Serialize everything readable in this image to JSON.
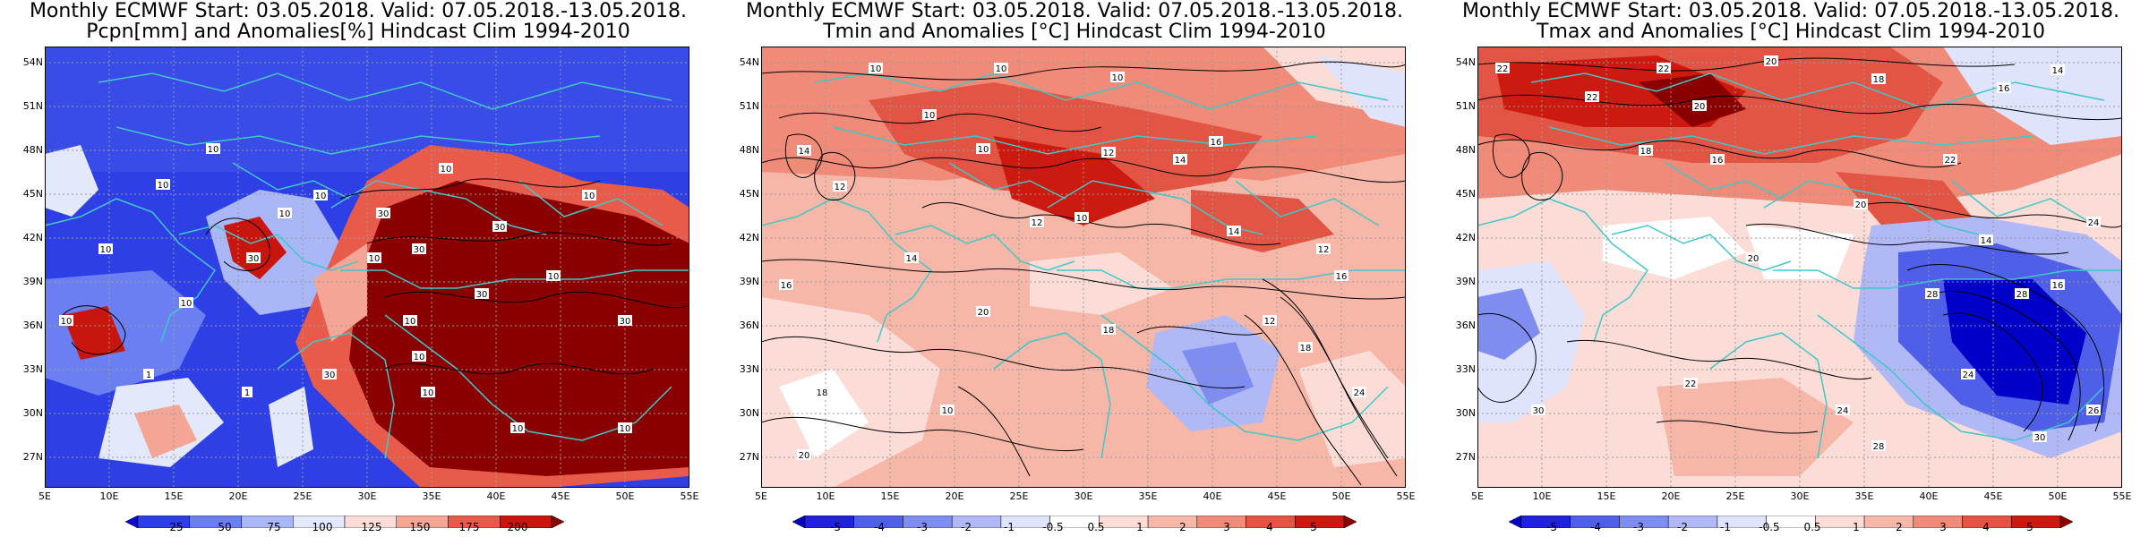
{
  "panels": [
    {
      "title1": "Monthly ECMWF Start: 03.05.2018. Valid: 07.05.2018.-13.05.2018.",
      "title2": "Pcpn[mm] and Anomalies[%] Hindcast Clim 1994-2010",
      "colorbar": {
        "colors": [
          "#0a0ad2",
          "#2e3fe6",
          "#6b7ff0",
          "#aab7f6",
          "#e3e8fb",
          "#fbdcd6",
          "#f4a595",
          "#e85a4a",
          "#c8160f",
          "#8a0000"
        ],
        "labels": [
          "25",
          "50",
          "75",
          "100",
          "125",
          "150",
          "175",
          "200"
        ]
      },
      "contour_labels": [
        "10",
        "10",
        "10",
        "10",
        "10",
        "10",
        "10",
        "10",
        "10",
        "10",
        "10",
        "10",
        "10",
        "10",
        "10",
        "10",
        "30",
        "30",
        "30",
        "30",
        "30",
        "30",
        "30",
        "1",
        "1"
      ]
    },
    {
      "title1": "Monthly ECMWF Start: 03.05.2018. Valid: 07.05.2018.-13.05.2018.",
      "title2": "Tmin and Anomalies [°C] Hindcast Clim 1994-2010",
      "colorbar": {
        "colors": [
          "#0000c8",
          "#2222dc",
          "#4f5fe8",
          "#7f8cf0",
          "#b0b8f6",
          "#dfe3fb",
          "#ffffff",
          "#fbdcd6",
          "#f6b7a8",
          "#ef8b78",
          "#e25544",
          "#cc1a10",
          "#8a0000"
        ],
        "labels": [
          "-5",
          "-4",
          "-3",
          "-2",
          "-1",
          "-0.5",
          "0.5",
          "1",
          "2",
          "3",
          "4",
          "5"
        ]
      },
      "contour_labels": [
        "10",
        "10",
        "10",
        "10",
        "10",
        "10",
        "12",
        "12",
        "12",
        "12",
        "14",
        "14",
        "14",
        "14",
        "16",
        "16",
        "16",
        "18",
        "18",
        "18",
        "20",
        "20",
        "24",
        "12",
        "10"
      ]
    },
    {
      "title1": "Monthly ECMWF Start: 03.05.2018. Valid: 07.05.2018.-13.05.2018.",
      "title2": "Tmax and Anomalies [°C] Hindcast Clim 1994-2010",
      "colorbar": {
        "colors": [
          "#0000c8",
          "#2222dc",
          "#4f5fe8",
          "#7f8cf0",
          "#b0b8f6",
          "#dfe3fb",
          "#ffffff",
          "#fbdcd6",
          "#f6b7a8",
          "#ef8b78",
          "#e25544",
          "#cc1a10",
          "#8a0000"
        ],
        "labels": [
          "-5",
          "-4",
          "-3",
          "-2",
          "-1",
          "-0.5",
          "0.5",
          "1",
          "2",
          "3",
          "4",
          "5"
        ]
      },
      "contour_labels": [
        "22",
        "22",
        "22",
        "20",
        "20",
        "18",
        "16",
        "16",
        "14",
        "24",
        "24",
        "28",
        "28",
        "26",
        "30",
        "30",
        "28",
        "22",
        "24",
        "18",
        "20",
        "16",
        "14",
        "20",
        "22"
      ]
    }
  ],
  "axes": {
    "y_labels": [
      "54N",
      "51N",
      "48N",
      "45N",
      "42N",
      "39N",
      "36N",
      "33N",
      "30N",
      "27N"
    ],
    "x_labels": [
      "5E",
      "10E",
      "15E",
      "20E",
      "25E",
      "30E",
      "35E",
      "40E",
      "45E",
      "50E",
      "55E"
    ]
  },
  "colors": {
    "coastline": "#40c8c8",
    "grid": "#9a9a9a",
    "contour": "#000000"
  }
}
